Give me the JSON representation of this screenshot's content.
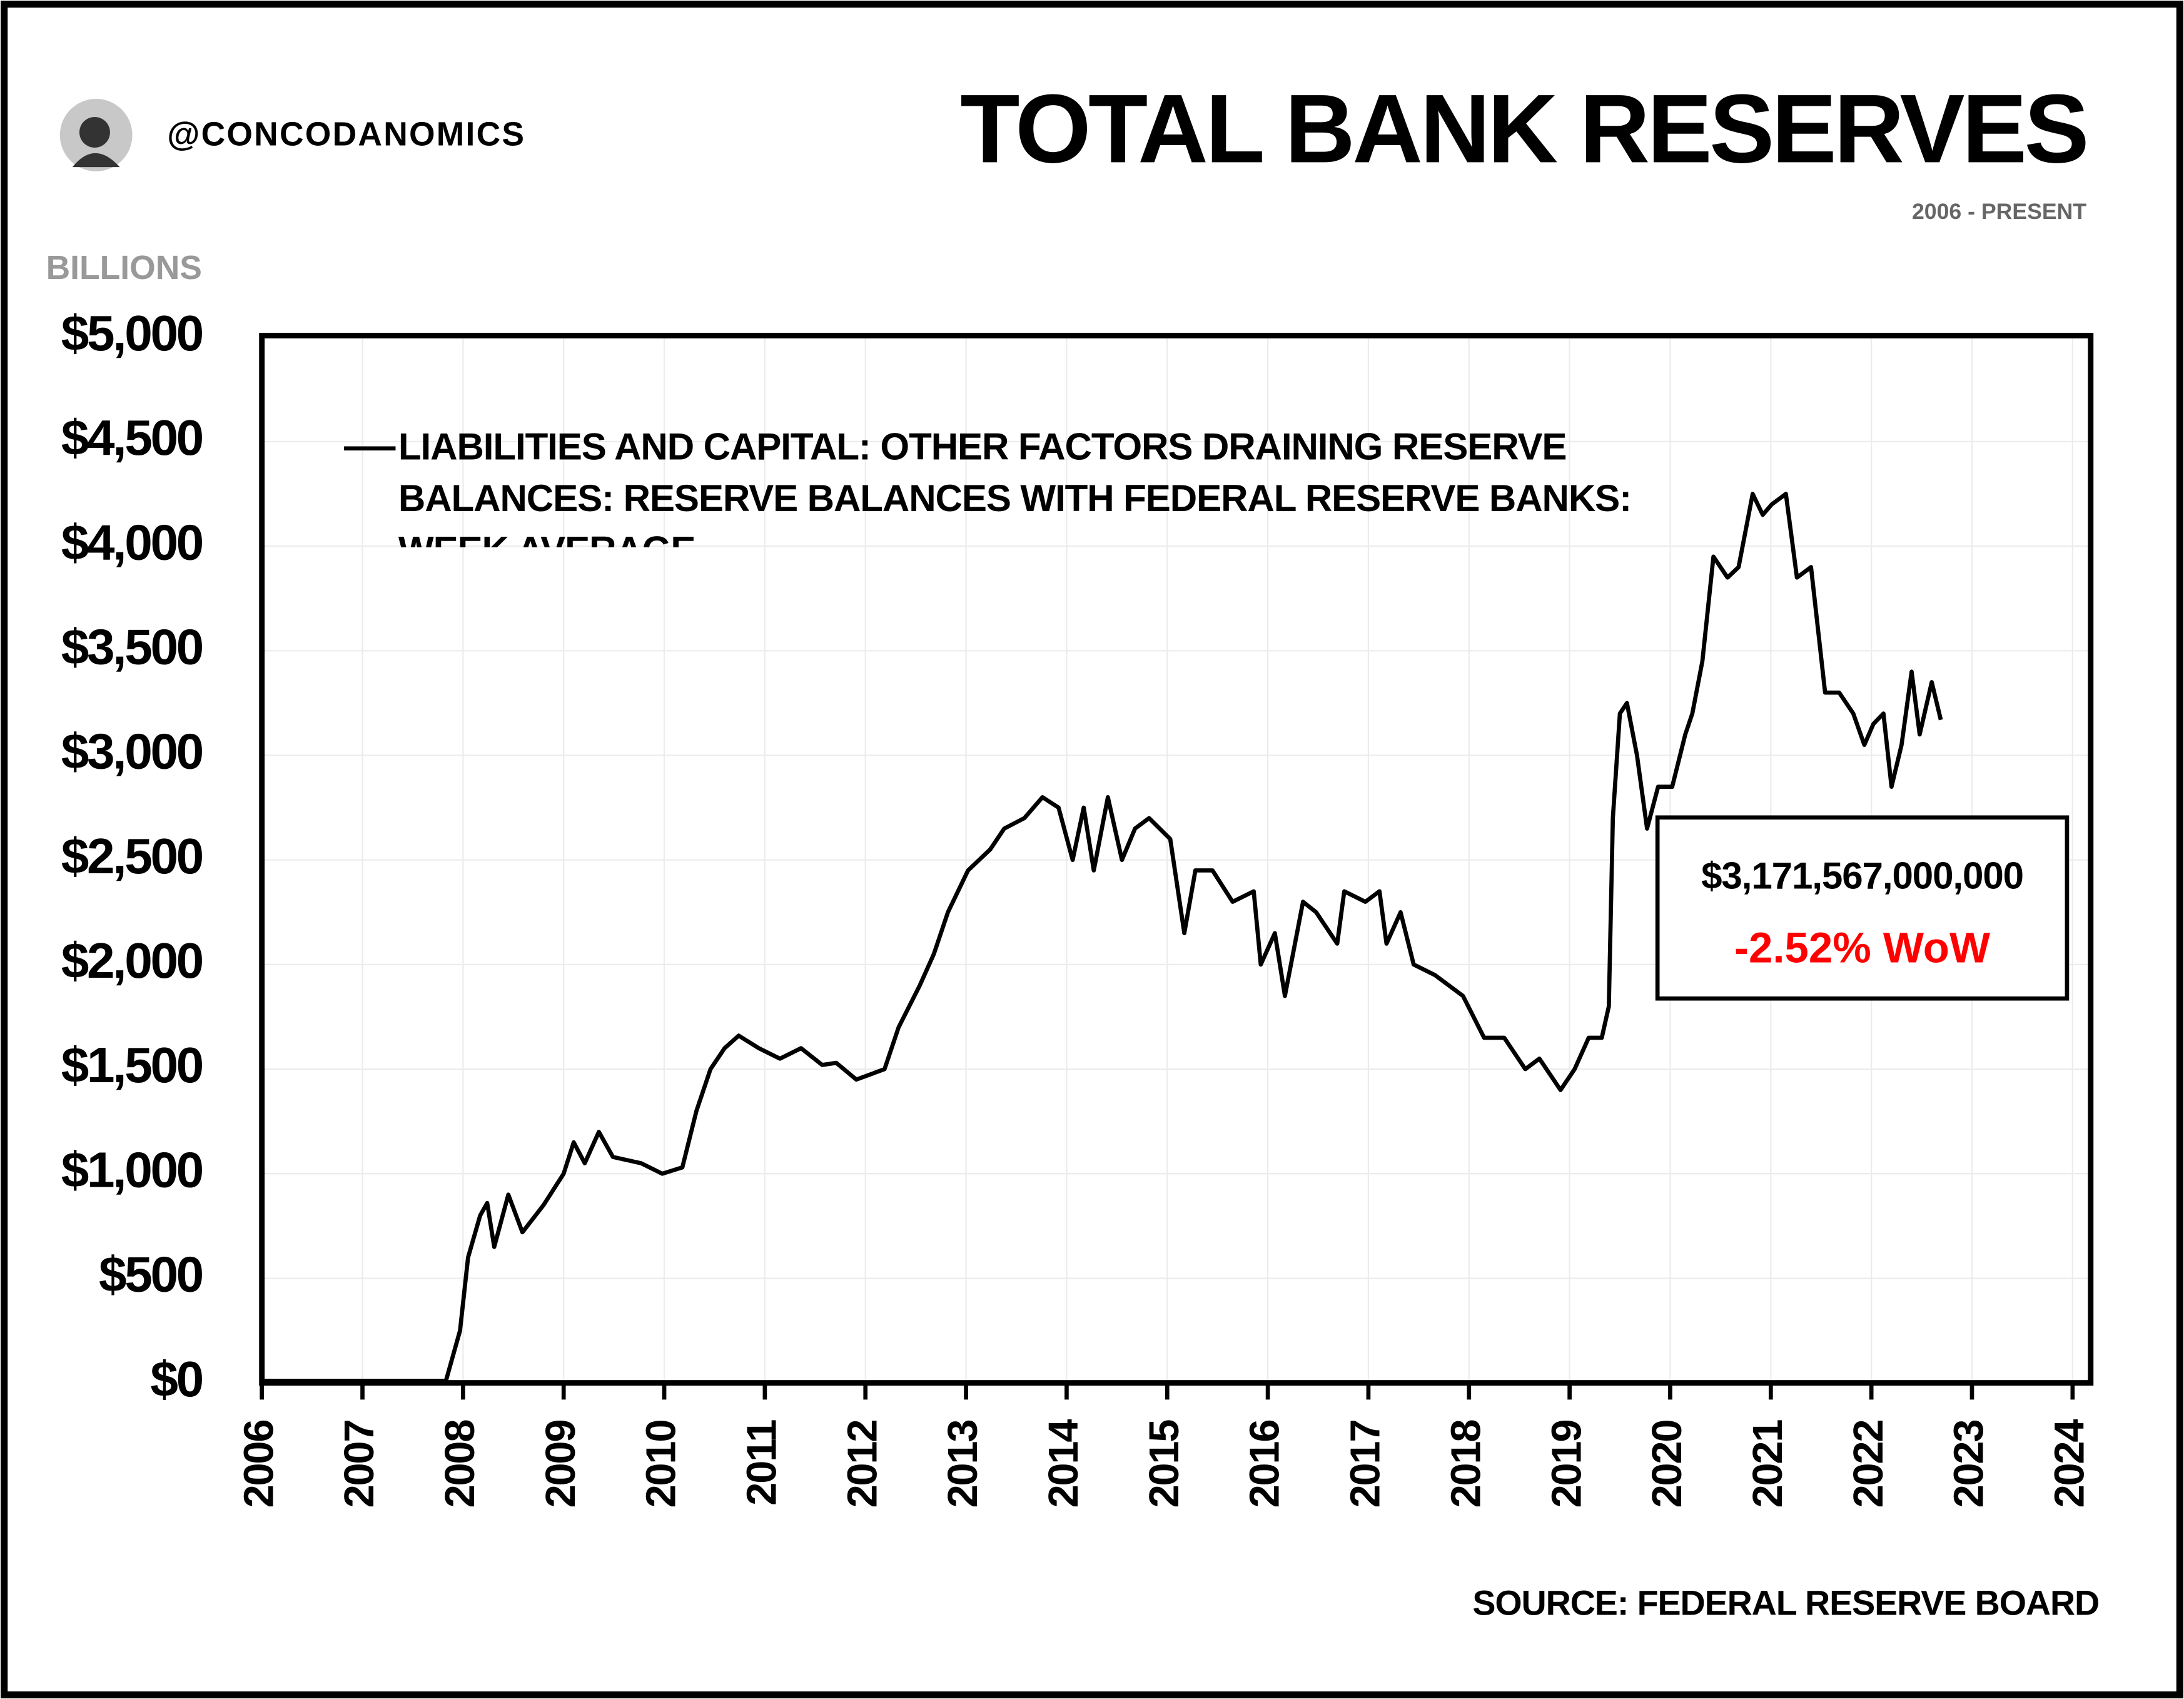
{
  "header": {
    "handle": "@CONCODANOMICS"
  },
  "chart_data": {
    "type": "line",
    "title": "TOTAL BANK RESERVES",
    "subtitle": "2006 - PRESENT",
    "y_unit": "BILLIONS",
    "source": "SOURCE: FEDERAL RESERVE BOARD",
    "annotation": {
      "value_text": "$3,171,567,000,000",
      "change_text": "-2.52% WoW",
      "change_color": "#ff0000"
    },
    "xlim": [
      2006,
      2024
    ],
    "xticks": [
      2006,
      2007,
      2008,
      2009,
      2010,
      2011,
      2012,
      2013,
      2014,
      2015,
      2016,
      2017,
      2018,
      2019,
      2020,
      2021,
      2022,
      2023,
      2024
    ],
    "ylim": [
      0,
      5000
    ],
    "yticks": [
      {
        "value": 0,
        "label": "$0"
      },
      {
        "value": 500,
        "label": "$500"
      },
      {
        "value": 1000,
        "label": "$1,000"
      },
      {
        "value": 1500,
        "label": "$1,500"
      },
      {
        "value": 2000,
        "label": "$2,000"
      },
      {
        "value": 2500,
        "label": "$2,500"
      },
      {
        "value": 3000,
        "label": "$3,000"
      },
      {
        "value": 3500,
        "label": "$3,500"
      },
      {
        "value": 4000,
        "label": "$4,000"
      },
      {
        "value": 4500,
        "label": "$4,500"
      },
      {
        "value": 5000,
        "label": "$5,000"
      }
    ],
    "grid": true,
    "legend": "upper-left",
    "x": [
      2006.0,
      2007.83,
      2007.97,
      2008.05,
      2008.17,
      2008.24,
      2008.31,
      2008.45,
      2008.59,
      2008.8,
      2009.0,
      2009.1,
      2009.21,
      2009.35,
      2009.49,
      2009.77,
      2009.98,
      2010.18,
      2010.32,
      2010.46,
      2010.6,
      2010.74,
      2010.94,
      2011.15,
      2011.36,
      2011.57,
      2011.71,
      2011.91,
      2012.19,
      2012.33,
      2012.54,
      2012.68,
      2012.82,
      2013.02,
      2013.24,
      2013.38,
      2013.58,
      2013.76,
      2013.92,
      2014.06,
      2014.17,
      2014.27,
      2014.41,
      2014.55,
      2014.68,
      2014.82,
      2015.03,
      2015.17,
      2015.28,
      2015.45,
      2015.65,
      2015.86,
      2015.93,
      2016.07,
      2016.17,
      2016.35,
      2016.48,
      2016.69,
      2016.76,
      2016.97,
      2017.11,
      2017.18,
      2017.32,
      2017.45,
      2017.66,
      2017.94,
      2018.15,
      2018.35,
      2018.56,
      2018.7,
      2018.84,
      2018.91,
      2019.05,
      2019.19,
      2019.32,
      2019.39,
      2019.43,
      2019.5,
      2019.57,
      2019.67,
      2019.77,
      2019.88,
      2020.02,
      2020.15,
      2020.22,
      2020.32,
      2020.43,
      2020.57,
      2020.68,
      2020.82,
      2020.92,
      2021.01,
      2021.15,
      2021.26,
      2021.4,
      2021.54,
      2021.68,
      2021.82,
      2021.93,
      2022.02,
      2022.12,
      2022.2,
      2022.3,
      2022.4,
      2022.48,
      2022.6,
      2022.69
    ],
    "series": [
      {
        "name": "LIABILITIES AND CAPITAL: OTHER FACTORS DRAINING RESERVE BALANCES: RESERVE BALANCES WITH FEDERAL RESERVE BANKS: WEEK AVERAGE",
        "color": "#000000",
        "values": [
          10,
          10,
          250,
          600,
          800,
          860,
          650,
          900,
          720,
          850,
          1000,
          1150,
          1050,
          1200,
          1080,
          1050,
          1000,
          1030,
          1300,
          1500,
          1600,
          1660,
          1600,
          1550,
          1600,
          1520,
          1530,
          1450,
          1500,
          1700,
          1900,
          2050,
          2250,
          2450,
          2550,
          2650,
          2700,
          2800,
          2750,
          2500,
          2750,
          2450,
          2800,
          2500,
          2650,
          2700,
          2600,
          2150,
          2450,
          2450,
          2300,
          2350,
          2000,
          2150,
          1850,
          2300,
          2250,
          2100,
          2350,
          2300,
          2350,
          2100,
          2250,
          2000,
          1950,
          1850,
          1650,
          1650,
          1500,
          1550,
          1450,
          1400,
          1500,
          1650,
          1650,
          1800,
          2700,
          3200,
          3250,
          3000,
          2650,
          2850,
          2850,
          3100,
          3200,
          3450,
          3950,
          3850,
          3900,
          4250,
          4150,
          4200,
          4250,
          3850,
          3900,
          3300,
          3300,
          3200,
          3050,
          3150,
          3200,
          2850,
          3050,
          3400,
          3100,
          3350,
          3170
        ]
      }
    ]
  }
}
